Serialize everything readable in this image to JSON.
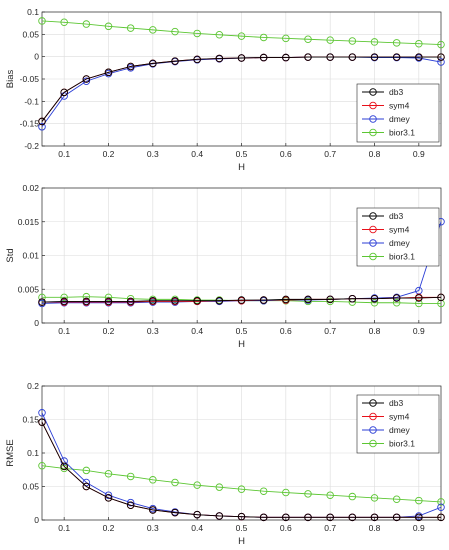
{
  "chart_data": [
    {
      "type": "line",
      "xlabel": "H",
      "ylabel": "Bias",
      "xlim": [
        0.05,
        0.95
      ],
      "ylim": [
        -0.2,
        0.1
      ],
      "xticks": [
        0.1,
        0.2,
        0.3,
        0.4,
        0.5,
        0.6,
        0.7,
        0.8,
        0.9
      ],
      "yticks": [
        -0.2,
        -0.15,
        -0.1,
        -0.05,
        0,
        0.05,
        0.1
      ],
      "ytick_labels": [
        "-0.2",
        "-0.15",
        "-0.1",
        "-0.05",
        "0",
        "0.05",
        "0.1"
      ],
      "grid": true,
      "legend": "inside-right-lower",
      "x": [
        0.05,
        0.1,
        0.15,
        0.2,
        0.25,
        0.3,
        0.35,
        0.4,
        0.45,
        0.5,
        0.55,
        0.6,
        0.65,
        0.7,
        0.75,
        0.8,
        0.85,
        0.9,
        0.95
      ],
      "series": [
        {
          "name": "db3",
          "color": "#000000",
          "values": [
            -0.145,
            -0.08,
            -0.05,
            -0.035,
            -0.022,
            -0.015,
            -0.01,
            -0.006,
            -0.004,
            -0.003,
            -0.002,
            -0.002,
            -0.001,
            -0.001,
            -0.001,
            -0.001,
            -0.001,
            -0.001,
            -0.001
          ]
        },
        {
          "name": "sym4",
          "color": "#e8101a",
          "values": [
            -0.145,
            -0.08,
            -0.05,
            -0.035,
            -0.022,
            -0.015,
            -0.01,
            -0.006,
            -0.004,
            -0.003,
            -0.002,
            -0.002,
            -0.001,
            -0.001,
            -0.001,
            -0.001,
            -0.001,
            -0.001,
            -0.001
          ]
        },
        {
          "name": "dmey",
          "color": "#2b3ed6",
          "values": [
            -0.157,
            -0.088,
            -0.055,
            -0.038,
            -0.025,
            -0.016,
            -0.011,
            -0.007,
            -0.005,
            -0.003,
            -0.002,
            -0.002,
            -0.001,
            -0.001,
            -0.001,
            -0.002,
            -0.002,
            -0.003,
            -0.012
          ]
        },
        {
          "name": "bior3.1",
          "color": "#5cc633",
          "values": [
            0.08,
            0.077,
            0.073,
            0.068,
            0.064,
            0.06,
            0.056,
            0.052,
            0.049,
            0.046,
            0.043,
            0.041,
            0.039,
            0.037,
            0.035,
            0.033,
            0.031,
            0.029,
            0.027
          ]
        }
      ]
    },
    {
      "type": "line",
      "xlabel": "H",
      "ylabel": "Std",
      "xlim": [
        0.05,
        0.95
      ],
      "ylim": [
        0,
        0.02
      ],
      "xticks": [
        0.1,
        0.2,
        0.3,
        0.4,
        0.5,
        0.6,
        0.7,
        0.8,
        0.9
      ],
      "yticks": [
        0,
        0.005,
        0.01,
        0.015,
        0.02
      ],
      "ytick_labels": [
        "0",
        "0.005",
        "0.01",
        "0.015",
        "0.02"
      ],
      "grid": true,
      "legend": "top-right",
      "x": [
        0.05,
        0.1,
        0.15,
        0.2,
        0.25,
        0.3,
        0.35,
        0.4,
        0.45,
        0.5,
        0.55,
        0.6,
        0.65,
        0.7,
        0.75,
        0.8,
        0.85,
        0.9,
        0.95
      ],
      "series": [
        {
          "name": "db3",
          "color": "#000000",
          "values": [
            0.0031,
            0.0032,
            0.0032,
            0.0032,
            0.0032,
            0.0033,
            0.0033,
            0.0033,
            0.0033,
            0.0034,
            0.0034,
            0.0035,
            0.0035,
            0.0035,
            0.0036,
            0.0036,
            0.0037,
            0.0037,
            0.0038
          ]
        },
        {
          "name": "sym4",
          "color": "#e8101a",
          "values": [
            0.0031,
            0.0031,
            0.0031,
            0.0031,
            0.0031,
            0.0032,
            0.0032,
            0.0032,
            0.0033,
            0.0033,
            0.0034,
            0.0034,
            0.0035,
            0.0035,
            0.0036,
            0.0036,
            0.0037,
            0.0038,
            0.0038
          ]
        },
        {
          "name": "dmey",
          "color": "#2b3ed6",
          "values": [
            0.0029,
            0.003,
            0.003,
            0.003,
            0.003,
            0.0031,
            0.0031,
            0.0032,
            0.0032,
            0.0033,
            0.0033,
            0.0034,
            0.0034,
            0.0035,
            0.0036,
            0.0037,
            0.0038,
            0.0048,
            0.015
          ]
        },
        {
          "name": "bior3.1",
          "color": "#5cc633",
          "values": [
            0.0038,
            0.0038,
            0.0039,
            0.0038,
            0.0036,
            0.0035,
            0.0035,
            0.0034,
            0.0034,
            0.0033,
            0.0033,
            0.0033,
            0.0032,
            0.0032,
            0.0031,
            0.003,
            0.003,
            0.0029,
            0.0029
          ]
        }
      ]
    },
    {
      "type": "line",
      "xlabel": "H",
      "ylabel": "RMSE",
      "xlim": [
        0.05,
        0.95
      ],
      "ylim": [
        0,
        0.2
      ],
      "xticks": [
        0.1,
        0.2,
        0.3,
        0.4,
        0.5,
        0.6,
        0.7,
        0.8,
        0.9
      ],
      "yticks": [
        0,
        0.05,
        0.1,
        0.15,
        0.2
      ],
      "ytick_labels": [
        "0",
        "0.05",
        "0.1",
        "0.15",
        "0.2"
      ],
      "grid": true,
      "legend": "top-right",
      "x": [
        0.05,
        0.1,
        0.15,
        0.2,
        0.25,
        0.3,
        0.35,
        0.4,
        0.45,
        0.5,
        0.55,
        0.6,
        0.65,
        0.7,
        0.75,
        0.8,
        0.85,
        0.9,
        0.95
      ],
      "series": [
        {
          "name": "db3",
          "color": "#000000",
          "values": [
            0.146,
            0.08,
            0.05,
            0.033,
            0.022,
            0.015,
            0.011,
            0.008,
            0.006,
            0.005,
            0.004,
            0.004,
            0.004,
            0.004,
            0.004,
            0.004,
            0.004,
            0.004,
            0.004
          ]
        },
        {
          "name": "sym4",
          "color": "#e8101a",
          "values": [
            0.146,
            0.08,
            0.05,
            0.033,
            0.022,
            0.015,
            0.011,
            0.008,
            0.006,
            0.005,
            0.004,
            0.004,
            0.004,
            0.004,
            0.004,
            0.004,
            0.004,
            0.004,
            0.004
          ]
        },
        {
          "name": "dmey",
          "color": "#2b3ed6",
          "values": [
            0.16,
            0.088,
            0.056,
            0.037,
            0.026,
            0.017,
            0.012,
            0.008,
            0.006,
            0.005,
            0.004,
            0.004,
            0.004,
            0.004,
            0.004,
            0.004,
            0.004,
            0.006,
            0.019
          ]
        },
        {
          "name": "bior3.1",
          "color": "#5cc633",
          "values": [
            0.081,
            0.077,
            0.074,
            0.069,
            0.065,
            0.06,
            0.056,
            0.052,
            0.049,
            0.046,
            0.043,
            0.041,
            0.039,
            0.037,
            0.035,
            0.033,
            0.031,
            0.029,
            0.027
          ]
        }
      ]
    }
  ]
}
